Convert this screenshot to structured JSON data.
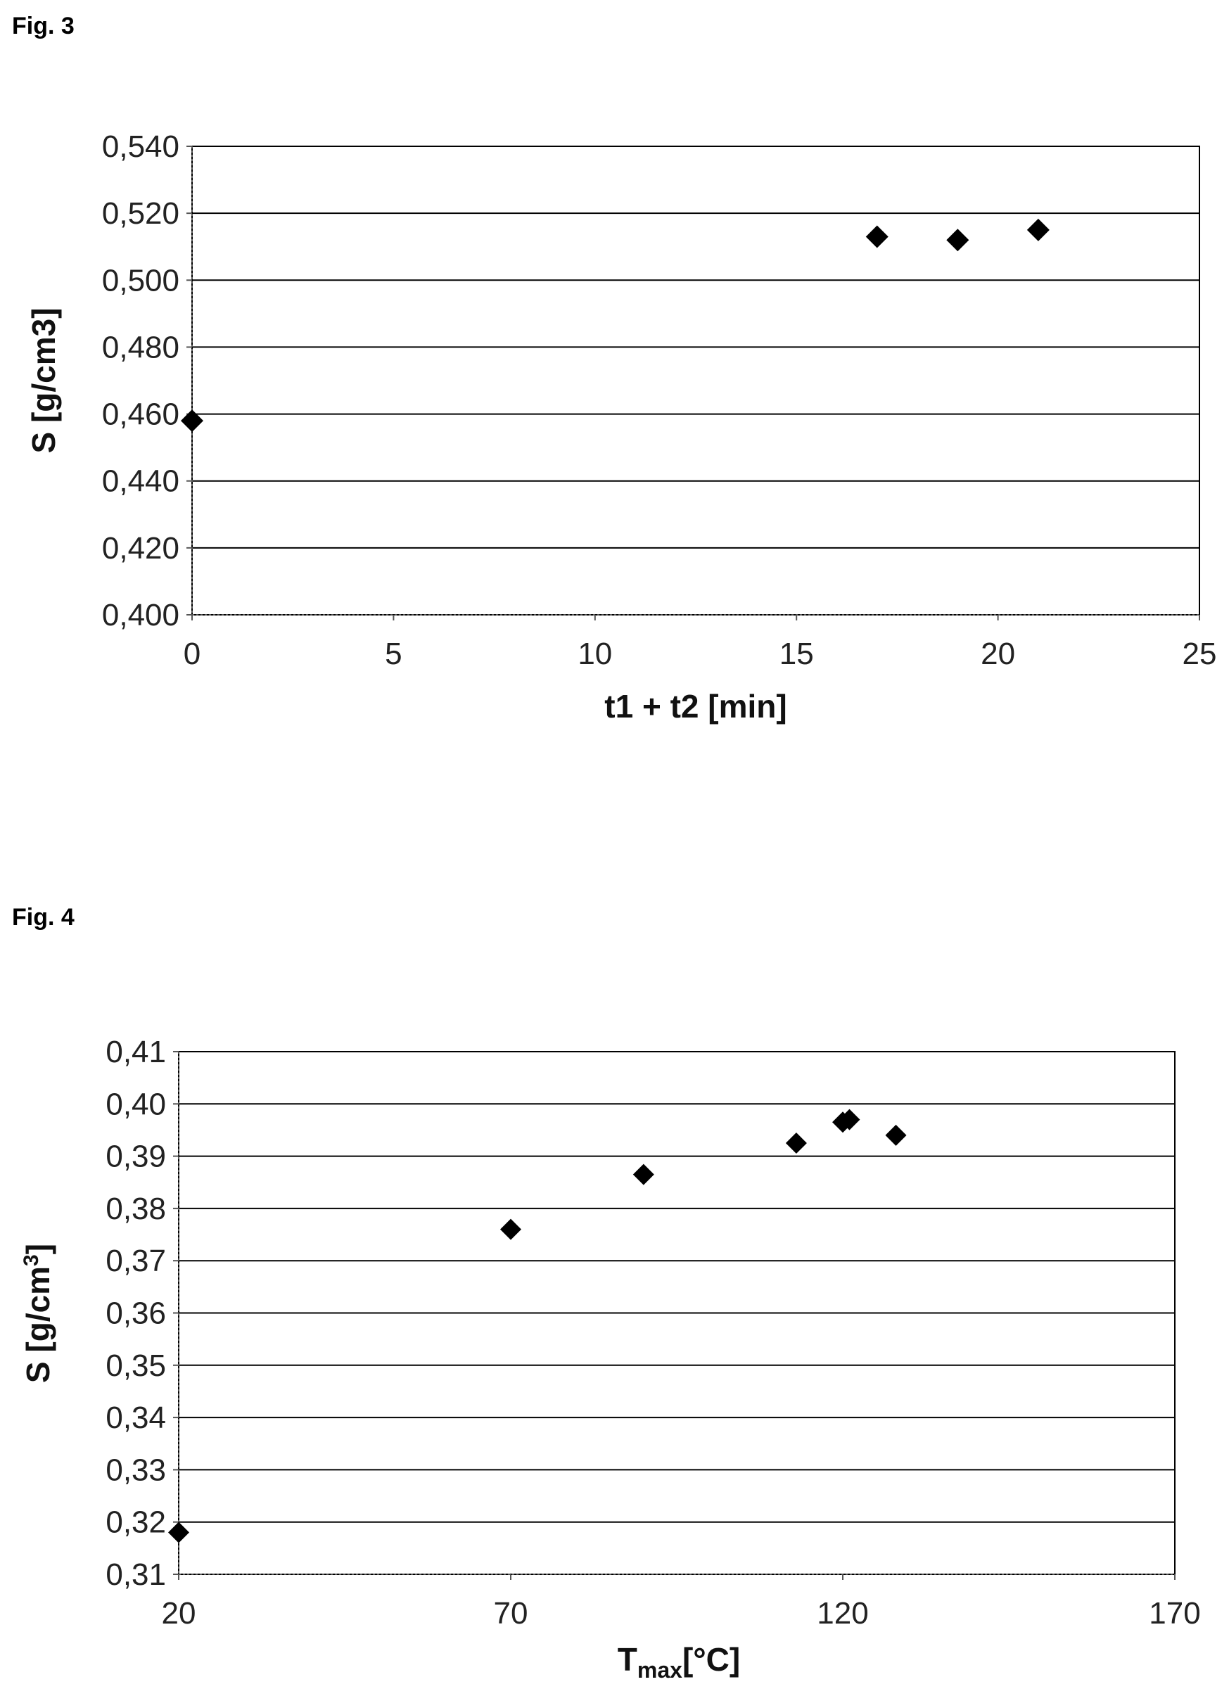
{
  "figures": [
    {
      "label": "Fig. 3"
    },
    {
      "label": "Fig. 4"
    }
  ],
  "chart_data": [
    {
      "type": "scatter",
      "xlabel": "t1 + t2 [min]",
      "ylabel": "S [g/cm3]",
      "xlim": [
        0,
        25
      ],
      "ylim": [
        0.4,
        0.54
      ],
      "x_ticks": [
        "0",
        "5",
        "10",
        "15",
        "20",
        "25"
      ],
      "x_tick_values": [
        0,
        5,
        10,
        15,
        20,
        25
      ],
      "y_ticks": [
        "0,400",
        "0,420",
        "0,440",
        "0,460",
        "0,480",
        "0,500",
        "0,520",
        "0,540"
      ],
      "y_tick_values": [
        0.4,
        0.42,
        0.44,
        0.46,
        0.48,
        0.5,
        0.52,
        0.54
      ],
      "grid": "horizontal",
      "marker": "diamond",
      "series": [
        {
          "x": [
            0,
            17,
            19,
            21
          ],
          "y": [
            0.458,
            0.513,
            0.512,
            0.515
          ]
        }
      ]
    },
    {
      "type": "scatter",
      "xlabel_main": "T",
      "xlabel_sub": "max",
      "xlabel_rest": "[°C]",
      "ylabel_main": "S [g/cm",
      "ylabel_sup": "3",
      "ylabel_end": "]",
      "xlim": [
        20,
        170
      ],
      "ylim": [
        0.31,
        0.41
      ],
      "x_ticks": [
        "20",
        "70",
        "120",
        "170"
      ],
      "x_tick_values": [
        20,
        70,
        120,
        170
      ],
      "y_ticks": [
        "0,31",
        "0,32",
        "0,33",
        "0,34",
        "0,35",
        "0,36",
        "0,37",
        "0,38",
        "0,39",
        "0,40",
        "0,41"
      ],
      "y_tick_values": [
        0.31,
        0.32,
        0.33,
        0.34,
        0.35,
        0.36,
        0.37,
        0.38,
        0.39,
        0.4,
        0.41
      ],
      "grid": "horizontal",
      "marker": "diamond",
      "series": [
        {
          "x": [
            20,
            70,
            90,
            113,
            120,
            121,
            128
          ],
          "y": [
            0.318,
            0.376,
            0.3865,
            0.3925,
            0.3965,
            0.397,
            0.394
          ]
        }
      ]
    }
  ]
}
